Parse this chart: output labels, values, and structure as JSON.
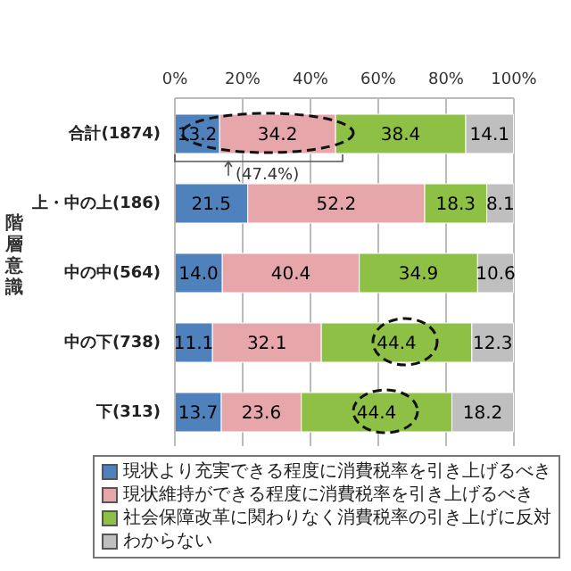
{
  "chart_data": {
    "type": "bar",
    "orientation": "horizontal",
    "stacked": true,
    "ylabel": "階層意識",
    "categories": [
      "合計(1874)",
      "上・中の上(186)",
      "中の中(564)",
      "中の下(738)",
      "下(313)"
    ],
    "series": [
      {
        "name": "現状より充実できる程度に消費税率を引き上げるべき",
        "color": "#4f81bd",
        "values": [
          13.2,
          21.5,
          14.0,
          11.1,
          13.7
        ],
        "value_labels": [
          "13.2",
          "21.5",
          "14.0",
          "11.1",
          "13.7"
        ]
      },
      {
        "name": "現状維持ができる程度に消費税率を引き上げるべき",
        "color": "#e6a6aa",
        "values": [
          34.2,
          52.2,
          40.4,
          32.1,
          23.6
        ],
        "value_labels": [
          "34.2",
          "52.2",
          "40.4",
          "32.1",
          "23.6"
        ]
      },
      {
        "name": "社会保障改革に関わりなく消費税率の引き上げに反対",
        "color": "#8dc045",
        "values": [
          38.4,
          18.3,
          34.9,
          44.4,
          44.4
        ],
        "value_labels": [
          "38.4",
          "18.3",
          "34.9",
          "44.4",
          "44.4"
        ]
      },
      {
        "name": "わからない",
        "color": "#bfbfbf",
        "values": [
          14.1,
          8.1,
          10.6,
          12.3,
          18.2
        ],
        "value_labels": [
          "14.1",
          "8.1",
          "10.6",
          "12.3",
          "18.2"
        ]
      }
    ],
    "xlim": [
      0,
      100
    ],
    "xticks": [
      {
        "value": 0,
        "label": "0%"
      },
      {
        "value": 20,
        "label": "20%"
      },
      {
        "value": 40,
        "label": "40%"
      },
      {
        "value": 60,
        "label": "60%"
      },
      {
        "value": 80,
        "label": "80%"
      },
      {
        "value": 100,
        "label": "100%"
      }
    ],
    "grid": "x",
    "legend": "bottom",
    "annotations": [
      "(47.4%)"
    ]
  }
}
